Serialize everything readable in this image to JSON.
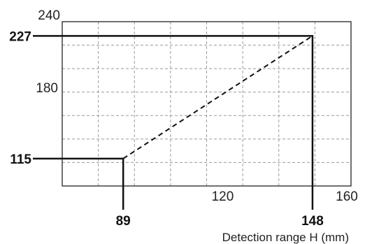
{
  "chart_data": {
    "type": "line",
    "xlabel": "Detection range H (mm)",
    "ylabel": "",
    "xlim": [
      70,
      160
    ],
    "ylim": [
      90,
      240
    ],
    "x_tick_labels": [
      "120",
      "160"
    ],
    "y_tick_labels": [
      "180",
      "240"
    ],
    "grid": true,
    "grid_style": "dashed",
    "series": [
      {
        "x": [
          89,
          148
        ],
        "y": [
          115,
          227
        ],
        "style": "dashed"
      }
    ],
    "callouts": [
      {
        "x": 89,
        "y": 115,
        "x_label": "89",
        "y_label": "115"
      },
      {
        "x": 148,
        "y": 227,
        "x_label": "148",
        "y_label": "227"
      }
    ],
    "colors": {
      "line": "#111111",
      "grid": "#9a9a9a",
      "frame": "#222222"
    }
  }
}
